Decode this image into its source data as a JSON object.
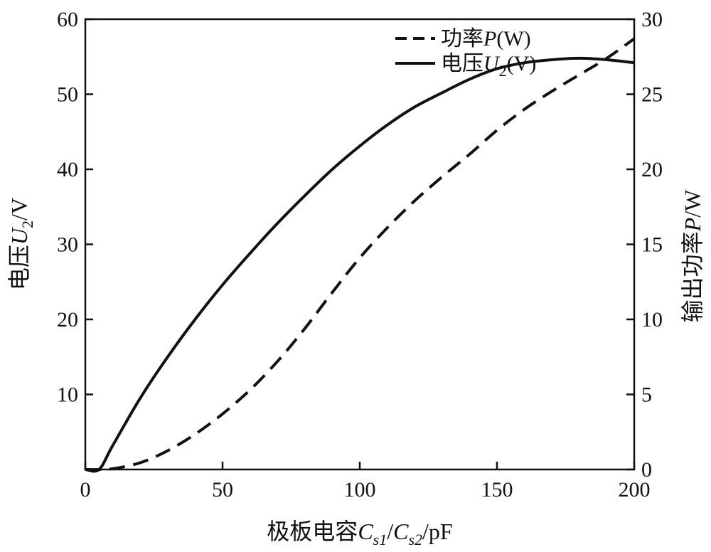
{
  "chart_data": {
    "type": "line",
    "title": "",
    "x": [
      0,
      5,
      10,
      20,
      30,
      40,
      50,
      60,
      70,
      80,
      90,
      100,
      110,
      120,
      130,
      140,
      150,
      160,
      170,
      180,
      190,
      200
    ],
    "xlabel": "极板电容Cs1/Cs2/pF",
    "xlabel_parts": {
      "prefix": "极板电容",
      "var1": "C",
      "sub1": "s1",
      "sep": "/",
      "var2": "C",
      "sub2": "s2",
      "unit": "/pF"
    },
    "xlim": [
      0,
      200
    ],
    "xticks": [
      0,
      50,
      100,
      150,
      200
    ],
    "y_left": {
      "label": "电压U2/V",
      "label_parts": {
        "prefix": "电压",
        "var": "U",
        "sub": "2",
        "unit": "/V"
      },
      "lim": [
        0,
        60
      ],
      "ticks": [
        10,
        20,
        30,
        40,
        50,
        60
      ]
    },
    "y_right": {
      "label": "输出功率P/W",
      "label_parts": {
        "prefix": "输出功率",
        "var": "P",
        "unit": "/W"
      },
      "lim": [
        0,
        30
      ],
      "ticks": [
        0,
        5,
        10,
        15,
        20,
        25,
        30
      ]
    },
    "series": [
      {
        "name": "功率P(W)",
        "name_parts": {
          "prefix": "功率",
          "var": "P",
          "unit": "(W)"
        },
        "axis": "right",
        "style": "dashed",
        "color": "#111111",
        "values": [
          0,
          0,
          0.05,
          0.45,
          1.25,
          2.35,
          3.7,
          5.3,
          7.2,
          9.4,
          11.8,
          14.1,
          16.1,
          17.9,
          19.5,
          21.0,
          22.6,
          24.0,
          25.2,
          26.3,
          27.4,
          28.7
        ]
      },
      {
        "name": "电压U2(V)",
        "name_parts": {
          "prefix": "电压",
          "var": "U",
          "sub": "2",
          "unit": "(V)"
        },
        "axis": "left",
        "style": "solid",
        "color": "#111111",
        "values": [
          0,
          0,
          3.2,
          9.5,
          15.0,
          20.0,
          24.6,
          28.8,
          32.8,
          36.5,
          40.0,
          43.1,
          45.9,
          48.3,
          50.2,
          52.0,
          53.4,
          54.2,
          54.6,
          54.8,
          54.6,
          54.2
        ]
      }
    ],
    "legend_position": "top-right",
    "grid": false
  }
}
